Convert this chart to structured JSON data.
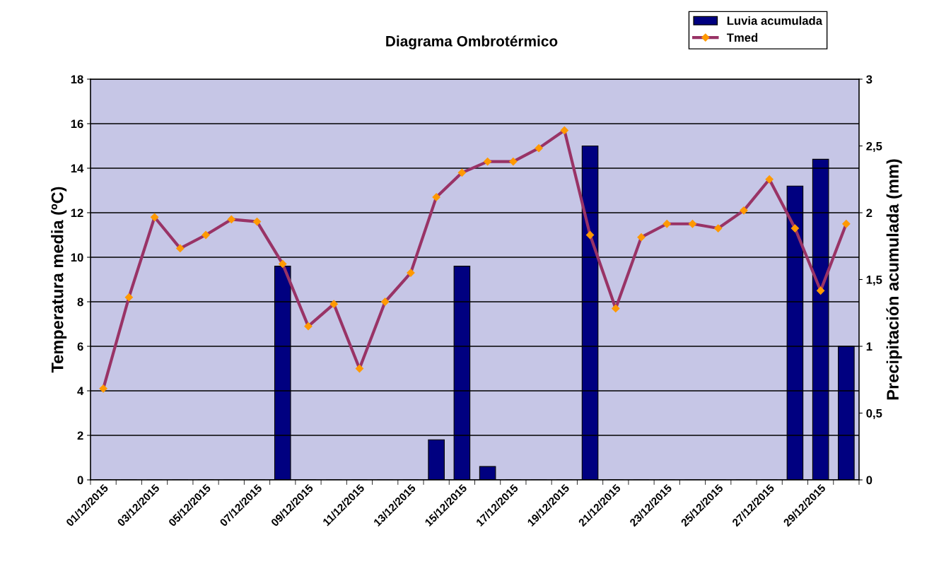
{
  "chart_data": {
    "type": "bar",
    "title": "Diagrama Ombrotérmico",
    "ylabel": "Temperatura media (ºC)",
    "y2label": "Precipitación acumulada (mm)",
    "categories": [
      "01/12/2015",
      null,
      "03/12/2015",
      null,
      "05/12/2015",
      null,
      "07/12/2015",
      null,
      "09/12/2015",
      null,
      "11/12/2015",
      null,
      "13/12/2015",
      null,
      "15/12/2015",
      null,
      "17/12/2015",
      null,
      "19/12/2015",
      null,
      "21/12/2015",
      null,
      "23/12/2015",
      null,
      "25/12/2015",
      null,
      "27/12/2015",
      null,
      "29/12/2015",
      null
    ],
    "series": [
      {
        "name": "Luvia acumulada",
        "axis": "y2",
        "color": "#000080",
        "values": [
          0,
          0,
          0,
          0,
          0,
          0,
          0,
          1.6,
          0,
          0,
          0,
          0,
          0,
          0.3,
          1.6,
          0.1,
          0,
          0,
          0,
          2.5,
          0,
          0,
          0,
          0,
          0,
          0,
          0,
          2.2,
          2.4,
          1.0
        ]
      },
      {
        "name": "Tmed",
        "type": "line",
        "axis": "y",
        "color": "#993366",
        "marker": "diamond",
        "values": [
          4.1,
          8.2,
          11.8,
          10.4,
          11.0,
          11.7,
          11.6,
          9.7,
          6.9,
          7.9,
          5.0,
          8.0,
          9.3,
          12.7,
          13.8,
          14.3,
          14.3,
          14.9,
          15.7,
          11.0,
          7.7,
          10.9,
          11.5,
          11.5,
          11.3,
          12.1,
          13.5,
          11.3,
          8.5,
          11.5
        ]
      }
    ],
    "ylim": [
      0,
      18
    ],
    "yticks": [
      0,
      2,
      4,
      6,
      8,
      10,
      12,
      14,
      16,
      18
    ],
    "y2lim": [
      0,
      3
    ],
    "y2ticks": [
      {
        "value": 0,
        "label": "0"
      },
      {
        "value": 0.5,
        "label": "0,5"
      },
      {
        "value": 1,
        "label": "1"
      },
      {
        "value": 1.5,
        "label": "1,5"
      },
      {
        "value": 2,
        "label": "2"
      },
      {
        "value": 2.5,
        "label": "2,5"
      },
      {
        "value": 3,
        "label": "3"
      }
    ],
    "grid": "y",
    "legend": "top right"
  }
}
